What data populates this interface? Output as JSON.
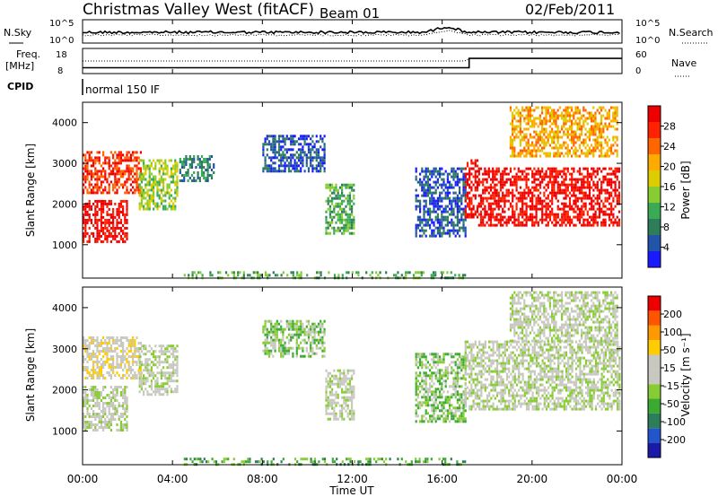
{
  "header": {
    "station": "Christmas Valley West (fitACF)",
    "beam": "Beam 01",
    "date": "02/Feb/2011"
  },
  "noise_panel": {
    "left_label": "N.Sky",
    "right_label": "N.Search",
    "left_ticks": [
      "10^5",
      "10^0"
    ],
    "right_ticks": [
      "10^5",
      "10^0"
    ]
  },
  "freq_panel": {
    "left_label_1": "Freq.",
    "left_label_2": "[MHz]",
    "left_ticks": [
      "18",
      "8"
    ],
    "right_label": "Nave",
    "right_ticks": [
      "60",
      "0"
    ]
  },
  "cpid": {
    "label": "CPID",
    "mode": "normal 150 IF"
  },
  "power_panel": {
    "ylabel": "Slant Range [km]",
    "yticks": [
      "4000",
      "3000",
      "2000",
      "1000"
    ],
    "colorbar_label": "Power [dB]",
    "colorbar_ticks": [
      "28",
      "24",
      "20",
      "16",
      "12",
      "8",
      "4"
    ],
    "colors": [
      "#1a1aff",
      "#2255aa",
      "#2e7d5a",
      "#3aaa55",
      "#88cc33",
      "#ddcc00",
      "#ffaa00",
      "#ff6600",
      "#ff2200",
      "#ee0000"
    ]
  },
  "velocity_panel": {
    "ylabel": "Slant Range [km]",
    "yticks": [
      "4000",
      "3000",
      "2000",
      "1000"
    ],
    "colorbar_label": "Velocity [m s⁻¹]",
    "colorbar_ticks": [
      "200",
      "100",
      "50",
      "15",
      "-15",
      "-50",
      "-100",
      "-200"
    ],
    "colors": [
      "#1a1aaa",
      "#2255cc",
      "#2e7d5a",
      "#3aaa33",
      "#88cc33",
      "#c8c8c0",
      "#c8c8c0",
      "#ffcc00",
      "#ff9900",
      "#ff5500",
      "#ee0000"
    ]
  },
  "xaxis": {
    "label": "Time UT",
    "ticks": [
      "00:00",
      "04:00",
      "08:00",
      "12:00",
      "16:00",
      "20:00",
      "00:00"
    ]
  },
  "chart_data": {
    "type": "heatmap",
    "title": "Christmas Valley West (fitACF)",
    "xlabel": "Time UT",
    "ylabel": "Slant Range [km]",
    "xlim_hours": [
      0,
      24
    ],
    "ylim_km": [
      180,
      4500
    ],
    "freq_mhz": [
      {
        "from_hour": 0,
        "to_hour": 17.2,
        "value": 10.5
      },
      {
        "from_hour": 17.2,
        "to_hour": 24,
        "value": 14.5
      }
    ],
    "power_regions": [
      {
        "t0": 0.0,
        "t1": 2.0,
        "r0": 1050,
        "r1": 2100,
        "level": 9
      },
      {
        "t0": 0.0,
        "t1": 2.6,
        "r0": 2300,
        "r1": 3300,
        "level": 8
      },
      {
        "t0": 2.5,
        "t1": 4.2,
        "r0": 1900,
        "r1": 3100,
        "level": 4
      },
      {
        "t0": 4.3,
        "t1": 5.8,
        "r0": 2600,
        "r1": 3200,
        "level": 2
      },
      {
        "t0": 8.0,
        "t1": 10.8,
        "r0": 2800,
        "r1": 3700,
        "level": 1
      },
      {
        "t0": 10.8,
        "t1": 12.1,
        "r0": 1300,
        "r1": 2500,
        "level": 3
      },
      {
        "t0": 14.8,
        "t1": 17.0,
        "r0": 1200,
        "r1": 2900,
        "level": 1
      },
      {
        "t0": 17.0,
        "t1": 17.6,
        "r0": 1700,
        "r1": 3100,
        "level": 9
      },
      {
        "t0": 17.6,
        "t1": 23.9,
        "r0": 1500,
        "r1": 2900,
        "level": 9
      },
      {
        "t0": 19.0,
        "t1": 23.8,
        "r0": 3200,
        "r1": 4400,
        "level": 6
      },
      {
        "t0": 4.5,
        "t1": 17.0,
        "r0": 180,
        "r1": 350,
        "level": 3
      }
    ],
    "velocity_regions": [
      {
        "t0": 0.0,
        "t1": 2.0,
        "r0": 1050,
        "r1": 2100,
        "level": 5
      },
      {
        "t0": 0.0,
        "t1": 2.6,
        "r0": 2300,
        "r1": 3300,
        "level": 6
      },
      {
        "t0": 2.5,
        "t1": 4.2,
        "r0": 1900,
        "r1": 3100,
        "level": 5
      },
      {
        "t0": 8.0,
        "t1": 10.8,
        "r0": 2800,
        "r1": 3700,
        "level": 4
      },
      {
        "t0": 10.8,
        "t1": 12.1,
        "r0": 1300,
        "r1": 2500,
        "level": 5
      },
      {
        "t0": 14.8,
        "t1": 17.0,
        "r0": 1200,
        "r1": 2900,
        "level": 4
      },
      {
        "t0": 17.0,
        "t1": 23.9,
        "r0": 1500,
        "r1": 3200,
        "level": 5
      },
      {
        "t0": 19.0,
        "t1": 23.8,
        "r0": 3200,
        "r1": 4400,
        "level": 5
      },
      {
        "t0": 4.5,
        "t1": 17.0,
        "r0": 180,
        "r1": 350,
        "level": 3
      }
    ]
  }
}
